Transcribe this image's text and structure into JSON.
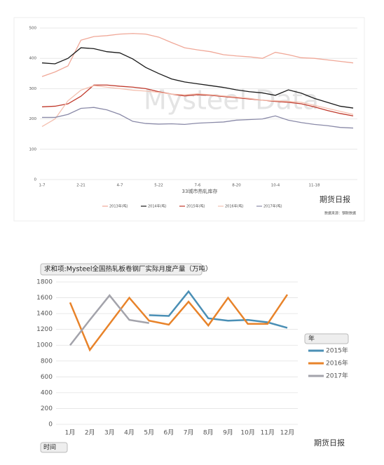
{
  "logo": "期货日报",
  "chart_data": [
    {
      "type": "line",
      "x_label": "33城市热轧库存",
      "watermark": "Mysteel Data",
      "source": "数据来源：钢联数据",
      "legend": "bottom",
      "grid": true,
      "categories": [
        "1-7",
        null,
        null,
        "2-21",
        null,
        null,
        "4-7",
        null,
        null,
        "5-22",
        null,
        null,
        "7-6",
        null,
        null,
        "8-20",
        null,
        null,
        "10-4",
        null,
        null,
        "11-18",
        null,
        null,
        null
      ],
      "ylim": [
        0,
        500
      ],
      "yticks": [
        0,
        100,
        200,
        300,
        400,
        500
      ],
      "series": [
        {
          "name": "2013年(吨)",
          "color": "#f0a898",
          "values": [
            340,
            355,
            375,
            460,
            472,
            475,
            480,
            482,
            480,
            470,
            452,
            435,
            428,
            422,
            412,
            408,
            405,
            400,
            420,
            412,
            402,
            400,
            395,
            390,
            385
          ]
        },
        {
          "name": "2014年(吨)",
          "color": "#1a1a1a",
          "values": [
            385,
            382,
            400,
            435,
            432,
            422,
            418,
            398,
            370,
            350,
            332,
            322,
            316,
            310,
            304,
            296,
            290,
            286,
            278,
            296,
            285,
            268,
            255,
            242,
            236
          ]
        },
        {
          "name": "2015年(吨)",
          "color": "#c0392b",
          "values": [
            240,
            242,
            250,
            275,
            312,
            312,
            308,
            305,
            300,
            290,
            282,
            276,
            280,
            278,
            274,
            270,
            266,
            262,
            258,
            255,
            250,
            240,
            228,
            218,
            210
          ]
        },
        {
          "name": "2016年(吨)",
          "color": "#f4c0b0",
          "values": [
            175,
            200,
            260,
            295,
            310,
            305,
            300,
            295,
            292,
            288,
            282,
            280,
            283,
            280,
            276,
            272,
            268,
            262,
            260,
            258,
            255,
            245,
            235,
            225,
            215
          ]
        },
        {
          "name": "2017年(吨)",
          "color": "#8a8aa8",
          "values": [
            205,
            205,
            215,
            235,
            238,
            230,
            215,
            192,
            185,
            183,
            184,
            182,
            186,
            188,
            190,
            196,
            198,
            200,
            210,
            196,
            188,
            182,
            178,
            172,
            170
          ]
        }
      ]
    },
    {
      "type": "line",
      "title": "求和项:Mysteel全国热轧板卷钢厂实际月度产量（万吨）",
      "legend": "right",
      "legend_title": "年",
      "filter_label": "时间",
      "grid": true,
      "categories": [
        "1月",
        "2月",
        "3月",
        "4月",
        "5月",
        "6月",
        "7月",
        "8月",
        "9月",
        "10月",
        "11月",
        "12月"
      ],
      "ylim": [
        0,
        1800
      ],
      "yticks": [
        0,
        200,
        400,
        600,
        800,
        1000,
        1200,
        1400,
        1600,
        1800
      ],
      "series": [
        {
          "name": "2015年",
          "color": "#4a8fb5",
          "values": [
            null,
            null,
            null,
            null,
            1380,
            1370,
            1680,
            1340,
            1310,
            1320,
            1290,
            1220
          ]
        },
        {
          "name": "2016年",
          "color": "#e8832a",
          "values": [
            1540,
            940,
            1270,
            1600,
            1310,
            1260,
            1550,
            1250,
            1600,
            1270,
            1270,
            1640
          ]
        },
        {
          "name": "2017年",
          "color": "#a3a3ab",
          "values": [
            1000,
            1320,
            1630,
            1320,
            1280,
            null,
            null,
            null,
            null,
            null,
            null,
            null
          ]
        }
      ]
    }
  ]
}
